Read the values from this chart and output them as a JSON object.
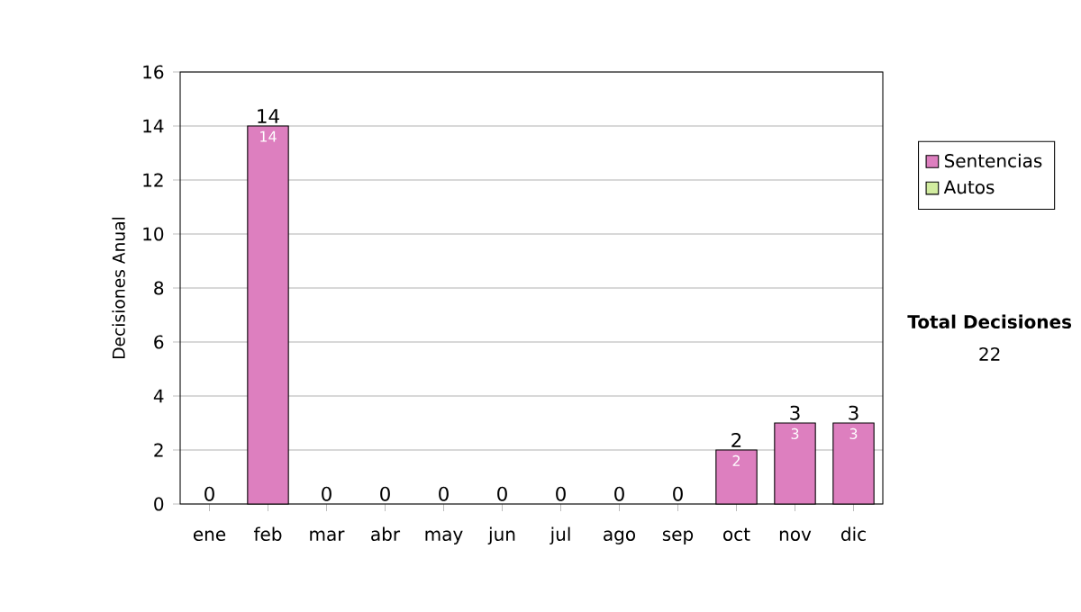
{
  "chart_data": {
    "type": "bar",
    "stacked": true,
    "ylabel": "Decisiones Anual",
    "categories": [
      "ene",
      "feb",
      "mar",
      "abr",
      "may",
      "jun",
      "jul",
      "ago",
      "sep",
      "oct",
      "nov",
      "dic"
    ],
    "series": [
      {
        "name": "Sentencias",
        "color": "#dd7fbf",
        "values": [
          0,
          14,
          0,
          0,
          0,
          0,
          0,
          0,
          0,
          2,
          3,
          3
        ],
        "value_labels": [
          null,
          "14",
          null,
          null,
          null,
          null,
          null,
          null,
          null,
          "2",
          "3",
          "3"
        ]
      },
      {
        "name": "Autos",
        "color": "#d2eca0",
        "values": [
          0,
          0,
          0,
          0,
          0,
          0,
          0,
          0,
          0,
          0,
          0,
          0
        ]
      }
    ],
    "totals": [
      "0",
      "14",
      "0",
      "0",
      "0",
      "0",
      "0",
      "0",
      "0",
      "2",
      "3",
      "3"
    ],
    "ylim": [
      0,
      16
    ],
    "yticks": [
      0,
      2,
      4,
      6,
      8,
      10,
      12,
      14,
      16
    ],
    "grid": "y",
    "legend": "right",
    "annotations": [
      "Total Decisiones",
      "22"
    ]
  }
}
